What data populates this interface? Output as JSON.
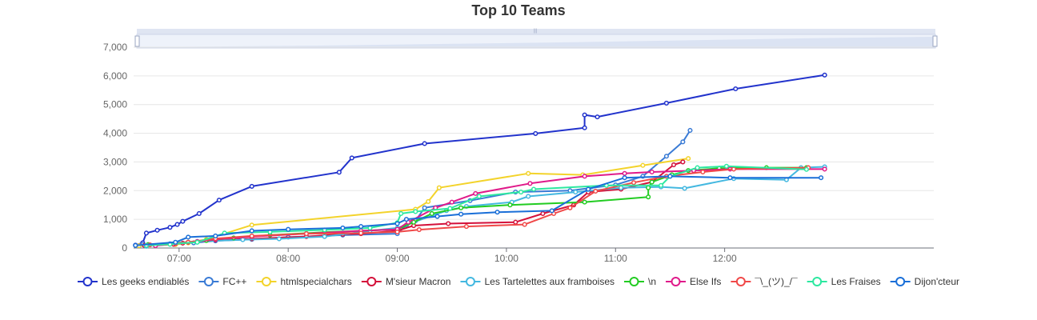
{
  "chart_data": {
    "type": "line",
    "title": "Top 10 Teams",
    "xlabel": "",
    "ylabel": "",
    "ylim": [
      0,
      7000
    ],
    "yticks": [
      0,
      1000,
      2000,
      3000,
      4000,
      5000,
      6000,
      7000
    ],
    "ytick_labels": [
      "0",
      "1,000",
      "2,000",
      "3,000",
      "4,000",
      "5,000",
      "6,000",
      "7,000"
    ],
    "xlim": [
      "06:35",
      "13:55"
    ],
    "xticks": [
      "07:00",
      "08:00",
      "09:00",
      "10:00",
      "11:00",
      "12:00"
    ],
    "grid": true,
    "legend_position": "bottom",
    "zoom_slider": true,
    "series": [
      {
        "name": "Les geeks endiablés",
        "color": "#2233cc",
        "points": [
          [
            "06:36",
            100
          ],
          [
            "06:40",
            180
          ],
          [
            "06:42",
            520
          ],
          [
            "06:48",
            620
          ],
          [
            "06:55",
            720
          ],
          [
            "06:59",
            820
          ],
          [
            "07:02",
            930
          ],
          [
            "07:11",
            1200
          ],
          [
            "07:22",
            1670
          ],
          [
            "07:40",
            2150
          ],
          [
            "08:28",
            2640
          ],
          [
            "08:35",
            3140
          ],
          [
            "09:15",
            3640
          ],
          [
            "10:16",
            3990
          ],
          [
            "10:43",
            4190
          ],
          [
            "10:43",
            4640
          ],
          [
            "10:50",
            4570
          ],
          [
            "11:28",
            5050
          ],
          [
            "12:06",
            5550
          ],
          [
            "12:55",
            6030
          ]
        ]
      },
      {
        "name": "FC++",
        "color": "#3a7bd5",
        "points": [
          [
            "06:40",
            120
          ],
          [
            "06:55",
            150
          ],
          [
            "07:08",
            180
          ],
          [
            "07:20",
            250
          ],
          [
            "07:40",
            300
          ],
          [
            "08:00",
            380
          ],
          [
            "08:30",
            450
          ],
          [
            "09:00",
            500
          ],
          [
            "09:05",
            800
          ],
          [
            "09:10",
            950
          ],
          [
            "09:15",
            1400
          ],
          [
            "09:40",
            1650
          ],
          [
            "10:05",
            1950
          ],
          [
            "10:35",
            2000
          ],
          [
            "11:00",
            2200
          ],
          [
            "11:15",
            2500
          ],
          [
            "11:28",
            3200
          ],
          [
            "11:37",
            3700
          ],
          [
            "11:41",
            4100
          ]
        ]
      },
      {
        "name": "htmlspecialchars",
        "color": "#f3d32b",
        "points": [
          [
            "06:38",
            80
          ],
          [
            "06:58",
            120
          ],
          [
            "07:05",
            180
          ],
          [
            "07:15",
            300
          ],
          [
            "07:40",
            800
          ],
          [
            "09:10",
            1350
          ],
          [
            "09:17",
            1620
          ],
          [
            "09:23",
            2100
          ],
          [
            "10:12",
            2600
          ],
          [
            "10:42",
            2550
          ],
          [
            "11:15",
            2880
          ],
          [
            "11:40",
            3120
          ]
        ]
      },
      {
        "name": "M'sieur Macron",
        "color": "#d4103a",
        "points": [
          [
            "06:41",
            90
          ],
          [
            "06:57",
            130
          ],
          [
            "07:02",
            170
          ],
          [
            "07:05",
            200
          ],
          [
            "07:10",
            230
          ],
          [
            "07:20",
            280
          ],
          [
            "07:40",
            320
          ],
          [
            "08:10",
            400
          ],
          [
            "08:30",
            480
          ],
          [
            "08:40",
            500
          ],
          [
            "09:00",
            600
          ],
          [
            "09:09",
            780
          ],
          [
            "09:28",
            850
          ],
          [
            "10:05",
            900
          ],
          [
            "10:20",
            1200
          ],
          [
            "10:37",
            1500
          ],
          [
            "10:45",
            1950
          ],
          [
            "11:03",
            2050
          ],
          [
            "11:20",
            2300
          ],
          [
            "11:32",
            2900
          ],
          [
            "11:37",
            3000
          ]
        ]
      },
      {
        "name": "Les Tartelettes aux framboises",
        "color": "#44b8e0",
        "points": [
          [
            "06:42",
            60
          ],
          [
            "06:58",
            180
          ],
          [
            "07:10",
            230
          ],
          [
            "07:35",
            290
          ],
          [
            "07:55",
            320
          ],
          [
            "08:20",
            400
          ],
          [
            "08:45",
            600
          ],
          [
            "09:00",
            700
          ],
          [
            "09:27",
            1300
          ],
          [
            "09:38",
            1450
          ],
          [
            "10:03",
            1600
          ],
          [
            "10:12",
            1800
          ],
          [
            "10:38",
            1950
          ],
          [
            "11:03",
            2100
          ],
          [
            "11:25",
            2130
          ],
          [
            "11:38",
            2080
          ],
          [
            "12:05",
            2420
          ],
          [
            "12:34",
            2380
          ],
          [
            "12:42",
            2800
          ],
          [
            "12:55",
            2830
          ]
        ]
      },
      {
        "name": "\\n",
        "color": "#22cc22",
        "points": [
          [
            "06:43",
            120
          ],
          [
            "06:58",
            160
          ],
          [
            "07:05",
            200
          ],
          [
            "07:15",
            260
          ],
          [
            "07:30",
            350
          ],
          [
            "07:50",
            450
          ],
          [
            "08:20",
            550
          ],
          [
            "09:00",
            650
          ],
          [
            "09:09",
            900
          ],
          [
            "09:19",
            1200
          ],
          [
            "09:35",
            1400
          ],
          [
            "10:02",
            1500
          ],
          [
            "10:43",
            1600
          ],
          [
            "11:18",
            1780
          ],
          [
            "11:18",
            2100
          ],
          [
            "11:20",
            2300
          ],
          [
            "11:31",
            2550
          ],
          [
            "11:40",
            2700
          ],
          [
            "11:57",
            2780
          ],
          [
            "12:23",
            2800
          ],
          [
            "12:45",
            2800
          ]
        ]
      },
      {
        "name": "Else Ifs",
        "color": "#e01a8a",
        "points": [
          [
            "06:47",
            80
          ],
          [
            "06:58",
            150
          ],
          [
            "07:10",
            220
          ],
          [
            "07:20",
            300
          ],
          [
            "07:40",
            400
          ],
          [
            "08:10",
            500
          ],
          [
            "08:40",
            600
          ],
          [
            "09:00",
            650
          ],
          [
            "09:06",
            900
          ],
          [
            "09:21",
            1400
          ],
          [
            "09:30",
            1600
          ],
          [
            "09:43",
            1900
          ],
          [
            "10:13",
            2250
          ],
          [
            "10:43",
            2500
          ],
          [
            "11:05",
            2600
          ],
          [
            "11:20",
            2650
          ],
          [
            "11:43",
            2700
          ],
          [
            "12:03",
            2750
          ],
          [
            "12:55",
            2750
          ]
        ]
      },
      {
        "name": "¯\\_(ツ)_/¯",
        "color": "#f04848",
        "points": [
          [
            "06:44",
            110
          ],
          [
            "06:58",
            160
          ],
          [
            "07:05",
            200
          ],
          [
            "07:20",
            330
          ],
          [
            "07:40",
            420
          ],
          [
            "08:10",
            500
          ],
          [
            "08:40",
            520
          ],
          [
            "09:00",
            560
          ],
          [
            "09:12",
            640
          ],
          [
            "09:38",
            750
          ],
          [
            "10:10",
            820
          ],
          [
            "10:26",
            1200
          ],
          [
            "10:35",
            1400
          ],
          [
            "10:49",
            1980
          ],
          [
            "11:10",
            2280
          ],
          [
            "11:28",
            2500
          ],
          [
            "11:48",
            2650
          ],
          [
            "12:05",
            2750
          ],
          [
            "12:46",
            2800
          ]
        ]
      },
      {
        "name": "Les Fraises",
        "color": "#2ce8a0",
        "points": [
          [
            "06:42",
            90
          ],
          [
            "06:55",
            130
          ],
          [
            "07:10",
            200
          ],
          [
            "07:25",
            520
          ],
          [
            "07:50",
            560
          ],
          [
            "08:20",
            630
          ],
          [
            "08:45",
            700
          ],
          [
            "09:00",
            880
          ],
          [
            "09:02",
            1200
          ],
          [
            "09:10",
            1270
          ],
          [
            "09:29",
            1380
          ],
          [
            "09:45",
            1800
          ],
          [
            "10:08",
            1950
          ],
          [
            "10:15",
            2050
          ],
          [
            "10:55",
            2180
          ],
          [
            "11:25",
            2180
          ],
          [
            "11:30",
            2500
          ],
          [
            "11:45",
            2800
          ],
          [
            "12:01",
            2850
          ],
          [
            "12:45",
            2740
          ]
        ]
      },
      {
        "name": "Dijon'cteur",
        "color": "#1a6fd8",
        "points": [
          [
            "06:36",
            90
          ],
          [
            "06:58",
            200
          ],
          [
            "07:05",
            380
          ],
          [
            "07:20",
            420
          ],
          [
            "07:40",
            600
          ],
          [
            "08:00",
            650
          ],
          [
            "08:30",
            700
          ],
          [
            "08:40",
            750
          ],
          [
            "09:00",
            850
          ],
          [
            "09:05",
            1000
          ],
          [
            "09:22",
            1100
          ],
          [
            "09:35",
            1180
          ],
          [
            "09:55",
            1250
          ],
          [
            "10:25",
            1300
          ],
          [
            "10:45",
            2050
          ],
          [
            "11:05",
            2450
          ],
          [
            "11:30",
            2500
          ],
          [
            "12:03",
            2450
          ],
          [
            "12:53",
            2450
          ]
        ]
      }
    ]
  }
}
